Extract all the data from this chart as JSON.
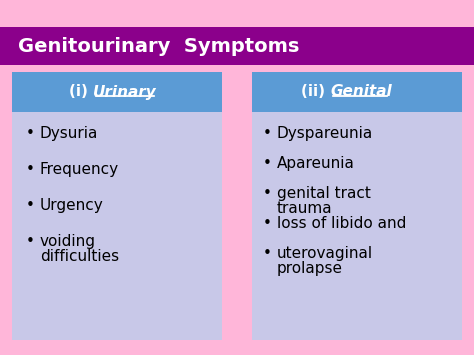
{
  "title": "Genitourinary  Symptoms",
  "title_bg": "#8B008B",
  "title_color": "#FFFFFF",
  "bg_color": "#FFB6D9",
  "panel_bg": "#C8C8E8",
  "header_bg": "#5B9BD5",
  "header_color": "#FFFFFF",
  "left_items": [
    "Dysuria",
    "Frequency",
    "Urgency",
    "voiding\ndifficulties"
  ],
  "right_items": [
    "Dyspareunia",
    "Apareunia",
    "genital tract\ntrauma",
    "loss of libido and",
    "uterovaginal\nprolapse"
  ],
  "bullet": "•"
}
